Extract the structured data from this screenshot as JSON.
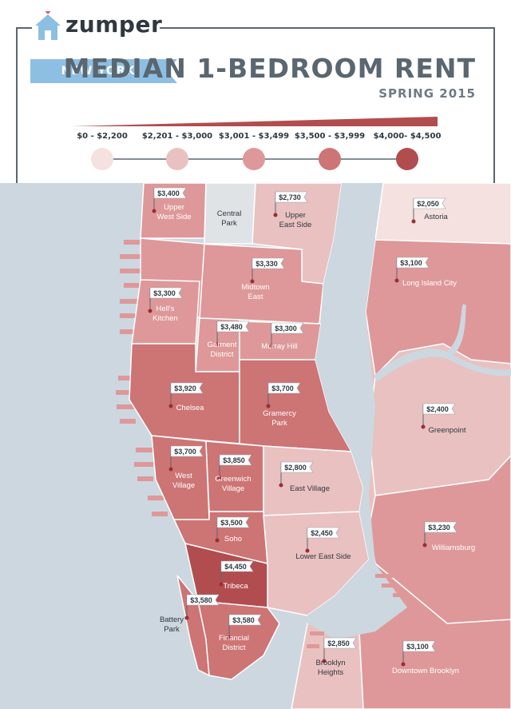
{
  "brand": {
    "logo_text": "zumper",
    "logo_icon": "house-icon"
  },
  "header": {
    "city": "NEW YORK",
    "title": "MEDIAN 1-BEDROOM RENT",
    "subtitle": "SPRING 2015"
  },
  "legend": [
    {
      "label": "$0 - $2,200",
      "color": "#f5e1e0"
    },
    {
      "label": "$2,201 - $3,000",
      "color": "#e9c1c0"
    },
    {
      "label": "$3,001 - $3,499",
      "color": "#de9899"
    },
    {
      "label": "$3,500 - $3,999",
      "color": "#cd7474"
    },
    {
      "label": "$4,000- $4,500",
      "color": "#b24d4f"
    }
  ],
  "colors": {
    "water": "#ccd7e0",
    "park": "#dfe3e6",
    "border": "#5a6670",
    "accent": "#b24d4f"
  },
  "neighborhoods": [
    {
      "id": "upper-west-side",
      "name": "Upper West Side",
      "rent": "$3,400"
    },
    {
      "id": "central-park",
      "name": "Central Park",
      "rent": ""
    },
    {
      "id": "upper-east-side",
      "name": "Upper East Side",
      "rent": "$2,730"
    },
    {
      "id": "astoria",
      "name": "Astoria",
      "rent": "$2,050"
    },
    {
      "id": "midtown-east",
      "name": "Midtown East",
      "rent": "$3,330"
    },
    {
      "id": "long-island-city",
      "name": "Long Island City",
      "rent": "$3,100"
    },
    {
      "id": "hells-kitchen",
      "name": "Hell's Kitchen",
      "rent": "$3,300"
    },
    {
      "id": "garment-district",
      "name": "Garment District",
      "rent": "$3,480"
    },
    {
      "id": "murray-hill",
      "name": "Murray Hill",
      "rent": "$3,300"
    },
    {
      "id": "chelsea",
      "name": "Chelsea",
      "rent": "$3,920"
    },
    {
      "id": "gramercy-park",
      "name": "Gramercy Park",
      "rent": "$3,700"
    },
    {
      "id": "greenpoint",
      "name": "Greenpoint",
      "rent": "$2,400"
    },
    {
      "id": "west-village",
      "name": "West Village",
      "rent": "$3,700"
    },
    {
      "id": "greenwich-village",
      "name": "Greenwich Village",
      "rent": "$3,850"
    },
    {
      "id": "east-village",
      "name": "East Village",
      "rent": "$2,800"
    },
    {
      "id": "soho",
      "name": "Soho",
      "rent": "$3,500"
    },
    {
      "id": "lower-east-side",
      "name": "Lower East Side",
      "rent": "$2,450"
    },
    {
      "id": "williamsburg",
      "name": "Williamsburg",
      "rent": "$3,230"
    },
    {
      "id": "tribeca",
      "name": "Tribeca",
      "rent": "$4,450"
    },
    {
      "id": "battery-park",
      "name": "Battery Park",
      "rent": "$3,580"
    },
    {
      "id": "financial-district",
      "name": "Financial District",
      "rent": "$3,580"
    },
    {
      "id": "brooklyn-heights",
      "name": "Brooklyn Heights",
      "rent": "$2,850"
    },
    {
      "id": "downtown-brooklyn",
      "name": "Downtown Brooklyn",
      "rent": "$3,100"
    }
  ]
}
